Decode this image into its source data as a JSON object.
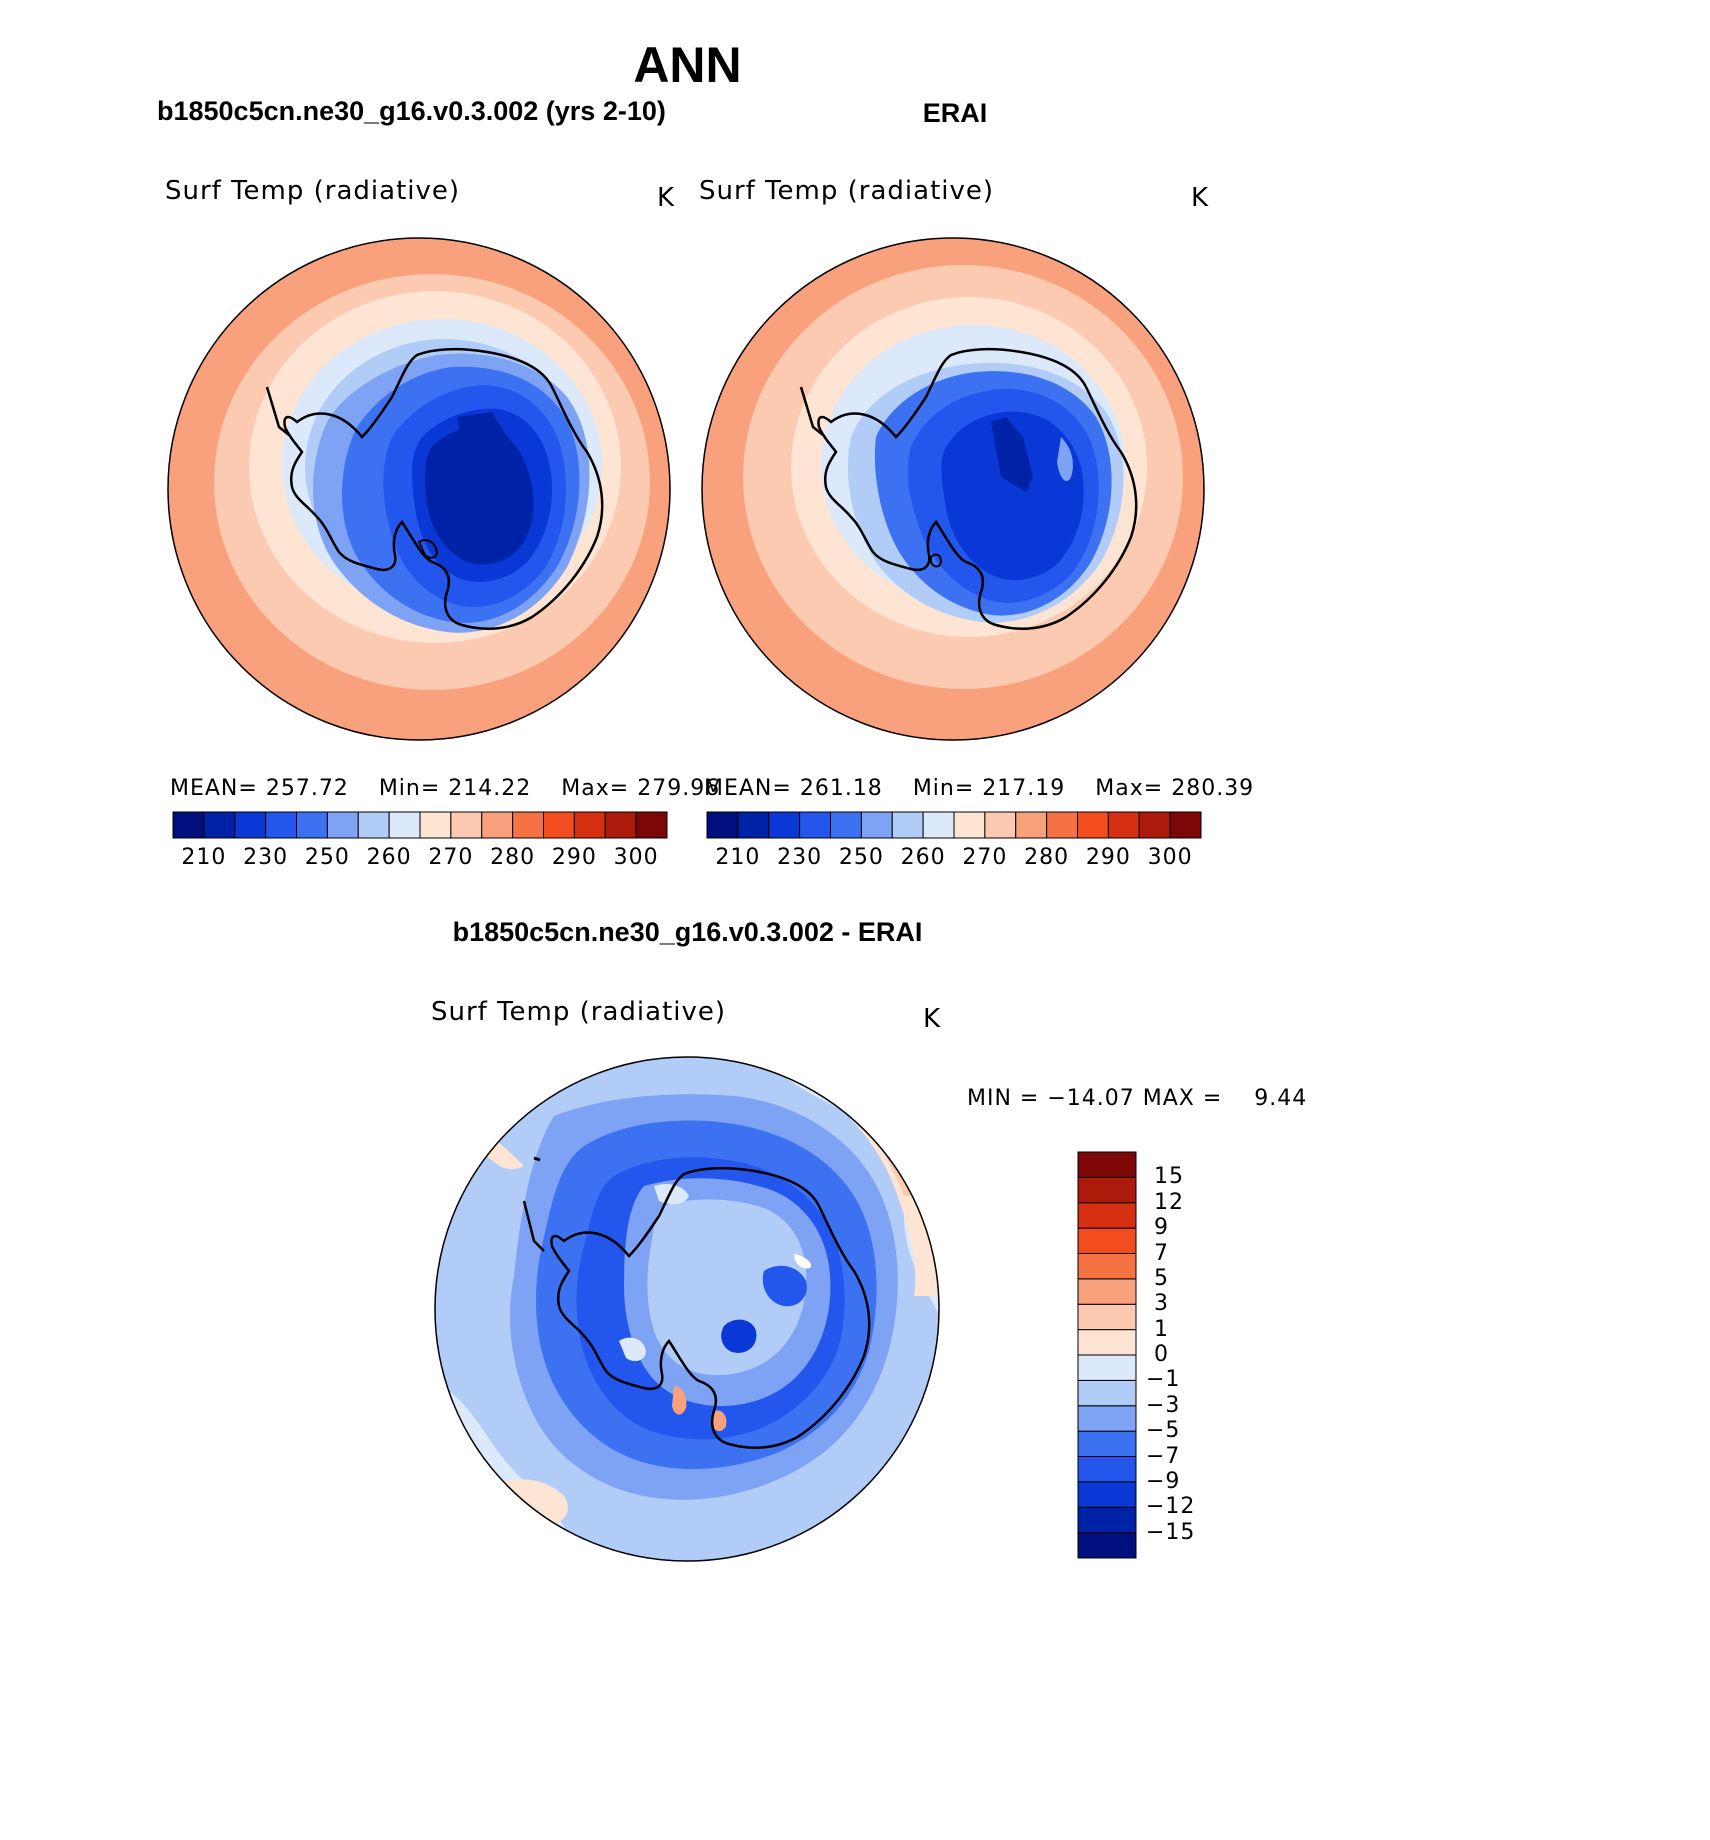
{
  "page_title": "ANN",
  "panel_left": {
    "header": "b1850c5cn.ne30_g16.v0.3.002 (yrs 2-10)",
    "variable": "Surf Temp (radiative)",
    "units": "K",
    "stats": {
      "mean_label": "MEAN=",
      "mean": "257.72",
      "min_label": "Min=",
      "min": "214.22",
      "max_label": "Max=",
      "max": "279.96"
    }
  },
  "panel_right": {
    "header": "ERAI",
    "variable": "Surf Temp (radiative)",
    "units": "K",
    "stats": {
      "mean_label": "MEAN=",
      "mean": "261.18",
      "min_label": "Min=",
      "min": "217.19",
      "max_label": "Max=",
      "max": "280.39"
    }
  },
  "panel_diff": {
    "header": "b1850c5cn.ne30_g16.v0.3.002 - ERAI",
    "variable": "Surf Temp (radiative)",
    "units": "K",
    "minmax": "MIN = −14.07 MAX =    9.44"
  },
  "colorbar_abs": {
    "colors": [
      "#000f7d",
      "#0022a6",
      "#0a38d6",
      "#2256ec",
      "#3c72f2",
      "#7ea2f4",
      "#b2ccf8",
      "#dbe9fb",
      "#fde4d3",
      "#fbcab0",
      "#f9a17c",
      "#f57243",
      "#f34c1f",
      "#d62e10",
      "#ad1a0c",
      "#7d0707"
    ],
    "labels": [
      "210",
      "230",
      "250",
      "260",
      "270",
      "280",
      "290",
      "300"
    ]
  },
  "colorbar_diff": {
    "colors": [
      "#000f7d",
      "#0022a6",
      "#0a38d6",
      "#2256ec",
      "#3c72f2",
      "#7ea2f4",
      "#b2ccf8",
      "#dbe9fb",
      "#fde4d3",
      "#fbcab0",
      "#f9a17c",
      "#f57243",
      "#f34c1f",
      "#d62e10",
      "#ad1a0c",
      "#7d0707"
    ],
    "labels": [
      "−15",
      "−12",
      "−9",
      "−7",
      "−5",
      "−3",
      "−1",
      "0",
      "1",
      "3",
      "5",
      "7",
      "9",
      "12",
      "15"
    ]
  }
}
